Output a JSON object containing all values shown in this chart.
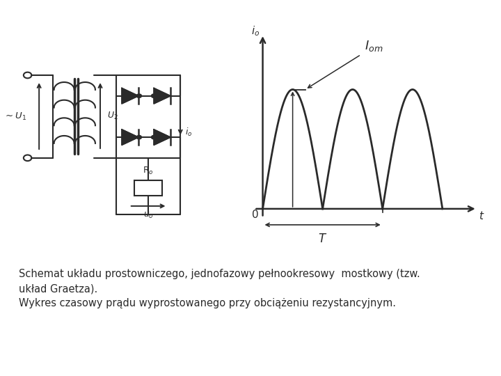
{
  "bg_color": "#ffffff",
  "line_color": "#2a2a2a",
  "caption_line1": "Schemat układu prostowniczego, jednofazowy pełnookresowy  mostkowy (tzw.",
  "caption_line2": "układ Graetza).",
  "caption_line3": "Wykres czasowy prądu wyprostowanego przy obciążeniu rezystancyjnym.",
  "caption_fontsize": 10.5
}
